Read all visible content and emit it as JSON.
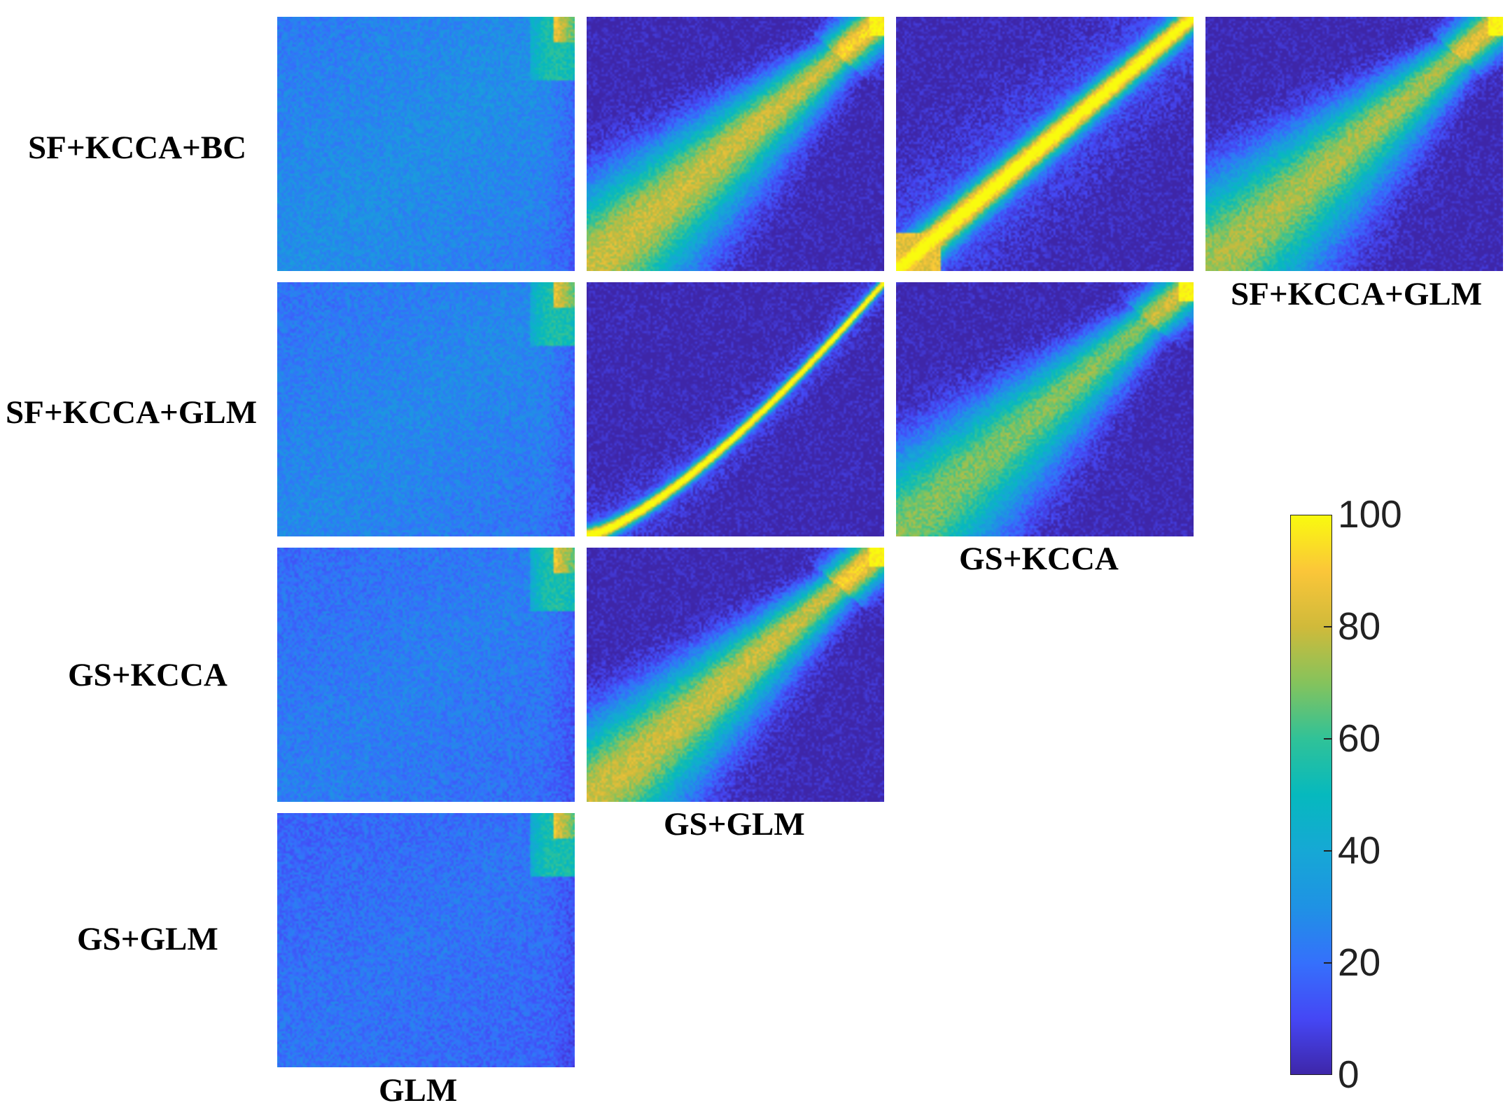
{
  "chart_data": {
    "type": "heatmap",
    "layout": "lower-triangular pairwise comparison matrix",
    "row_labels": [
      "SF+KCCA+BC",
      "SF+KCCA+GLM",
      "GS+KCCA",
      "GS+GLM"
    ],
    "column_labels": [
      "GLM",
      "GS+GLM",
      "GS+KCCA",
      "SF+KCCA+GLM"
    ],
    "colormap": "parula",
    "colorbar": {
      "range": [
        0,
        100
      ],
      "ticks": [
        0,
        20,
        40,
        60,
        80,
        100
      ],
      "tick_labels": [
        "0",
        "20",
        "40",
        "60",
        "80",
        "100"
      ]
    },
    "grid": false,
    "legend": "colorbar right",
    "panels": [
      {
        "row": 0,
        "col": 0,
        "pattern": "uniform",
        "background": 30,
        "corner_hot": true
      },
      {
        "row": 0,
        "col": 1,
        "pattern": "fan",
        "spread": 0.55,
        "peak": 80
      },
      {
        "row": 0,
        "col": 2,
        "pattern": "band",
        "curve": 1.0,
        "width": 0.06,
        "peak": 95
      },
      {
        "row": 0,
        "col": 3,
        "pattern": "fan",
        "spread": 0.6,
        "peak": 75
      },
      {
        "row": 1,
        "col": 0,
        "pattern": "uniform",
        "background": 28,
        "corner_hot": true
      },
      {
        "row": 1,
        "col": 1,
        "pattern": "band",
        "curve": 1.35,
        "width": 0.022,
        "peak": 100
      },
      {
        "row": 1,
        "col": 2,
        "pattern": "fan",
        "spread": 0.55,
        "peak": 70
      },
      {
        "row": 2,
        "col": 0,
        "pattern": "uniform",
        "background": 25,
        "corner_hot": true
      },
      {
        "row": 2,
        "col": 1,
        "pattern": "fan",
        "spread": 0.5,
        "peak": 80
      },
      {
        "row": 3,
        "col": 0,
        "pattern": "uniform",
        "background": 22,
        "corner_hot": true
      }
    ]
  }
}
